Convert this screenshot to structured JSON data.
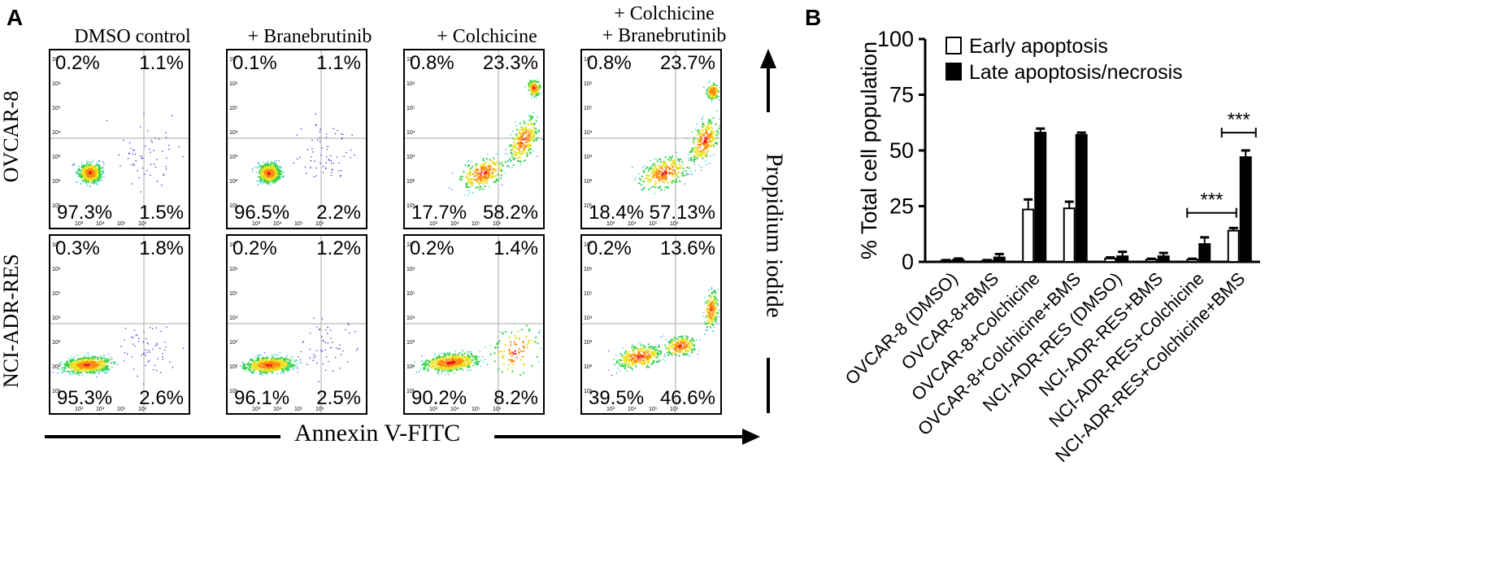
{
  "panel_a": {
    "letter": "A",
    "columns": [
      {
        "line1": "DMSO control",
        "line2": ""
      },
      {
        "line1": "+ Branebrutinib",
        "line2": ""
      },
      {
        "line1": "+ Colchicine",
        "line2": ""
      },
      {
        "line1": "+ Colchicine",
        "line2": "+ Branebrutinib"
      }
    ],
    "rows": [
      "OVCAR-8",
      "NCI-ADR-RES"
    ],
    "quadrants": [
      [
        {
          "ul": "0.2%",
          "ur": "1.1%",
          "ll": "97.3%",
          "lr": "1.5%"
        },
        {
          "ul": "0.1%",
          "ur": "1.1%",
          "ll": "96.5%",
          "lr": "2.2%"
        },
        {
          "ul": "0.8%",
          "ur": "23.3%",
          "ll": "17.7%",
          "lr": "58.2%"
        },
        {
          "ul": "0.8%",
          "ur": "23.7%",
          "ll": "18.4%",
          "lr": "57.13%"
        }
      ],
      [
        {
          "ul": "0.3%",
          "ur": "1.8%",
          "ll": "95.3%",
          "lr": "2.6%"
        },
        {
          "ul": "0.2%",
          "ur": "1.2%",
          "ll": "96.1%",
          "lr": "2.5%"
        },
        {
          "ul": "0.2%",
          "ur": "1.4%",
          "ll": "90.2%",
          "lr": "8.2%"
        },
        {
          "ul": "0.2%",
          "ur": "13.6%",
          "ll": "39.5%",
          "lr": "46.6%"
        }
      ]
    ],
    "y_ticks": [
      "10⁷",
      "10⁶",
      "10⁵",
      "10⁴",
      "10³",
      "10²",
      "10¹"
    ],
    "x_ticks": [
      "10³",
      "10⁴",
      "10⁵",
      "10⁶"
    ],
    "x_axis_label": "Annexin V-FITC",
    "y_axis_label": "Propidium iodide"
  },
  "chart_data": {
    "type": "bar",
    "panel_letter": "B",
    "ylabel": "% Total cell population",
    "ylim": [
      0,
      100
    ],
    "yticks": [
      0,
      25,
      50,
      75,
      100
    ],
    "categories": [
      "OVCAR-8 (DMSO)",
      "OVCAR-8+BMS",
      "OVCAR-8+Colchicine",
      "OVCAR-8+Colchicine+BMS",
      "NCI-ADR-RES (DMSO)",
      "NCI-ADR-RES+BMS",
      "NCI-ADR-RES+Colchicine",
      "NCI-ADR-RES+Colchicine+BMS"
    ],
    "series": [
      {
        "name": "Early apoptosis",
        "fill": "#ffffff",
        "values": [
          0.5,
          0.5,
          23.5,
          24,
          1.5,
          1,
          1,
          14
        ],
        "errors": [
          0.3,
          0.3,
          4.5,
          3,
          0.5,
          0.4,
          0.4,
          1.2
        ]
      },
      {
        "name": "Late apoptosis/necrosis",
        "fill": "#000000",
        "values": [
          1,
          2,
          58,
          57,
          2.5,
          2.5,
          8,
          47
        ],
        "errors": [
          0.5,
          1.5,
          1.8,
          1,
          2,
          1.5,
          3,
          3
        ]
      }
    ],
    "significance": [
      {
        "label": "***",
        "between": [
          6,
          7
        ]
      },
      {
        "label": "***",
        "category": 7
      }
    ],
    "legend_position": "top-left"
  }
}
